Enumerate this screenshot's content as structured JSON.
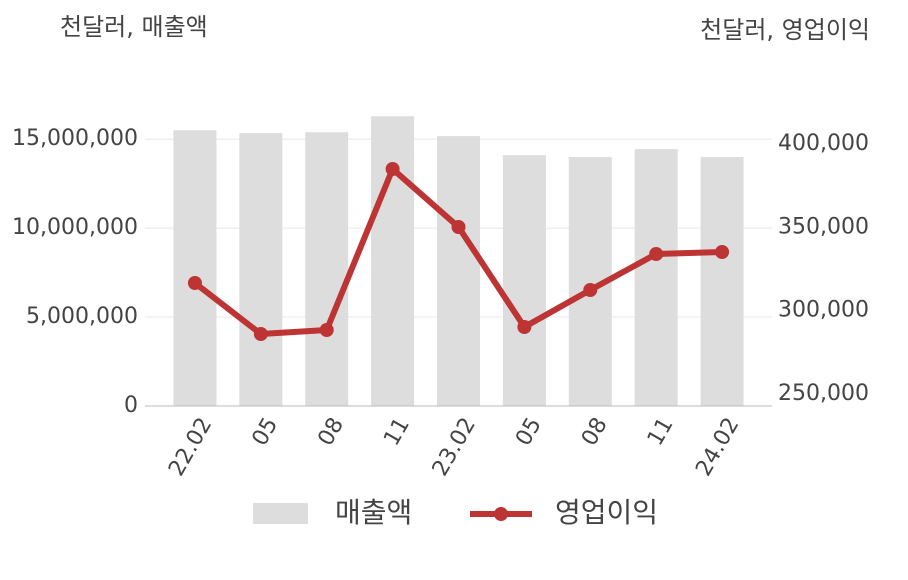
{
  "chart_data": {
    "type": "bar-line",
    "y_label": "천달러, 매출액",
    "y2_label": "천달러, 영업이익",
    "categories": [
      "22.02",
      "05",
      "08",
      "11",
      "23.02",
      "05",
      "08",
      "11",
      "24.02"
    ],
    "series": [
      {
        "name": "매출액",
        "type": "bar",
        "color": "#dddddd",
        "values": [
          15500000,
          15340000,
          15390000,
          16290000,
          15170000,
          14100000,
          13990000,
          14440000,
          13990000
        ]
      },
      {
        "name": "영업이익",
        "type": "line",
        "axis": "y2",
        "color": "#bd3434",
        "values": [
          316600,
          286000,
          288400,
          385000,
          350200,
          290200,
          312400,
          334000,
          335200
        ]
      }
    ],
    "ylim": [
      0,
      17200000
    ],
    "yticks": [
      0,
      {
        "value": 5000000,
        "label": "5,000,000"
      },
      {
        "value": 10000000,
        "label": "10,000,000"
      },
      {
        "value": 15000000,
        "label": "15,000,000"
      }
    ],
    "y2lim": [
      242800,
      426400
    ],
    "y2ticks": [
      {
        "value": 250000,
        "label": "250,000"
      },
      {
        "value": 300000,
        "label": "300,000"
      },
      {
        "value": 350000,
        "label": "350,000"
      },
      {
        "value": 400000,
        "label": "400,000"
      }
    ],
    "grid": true
  }
}
